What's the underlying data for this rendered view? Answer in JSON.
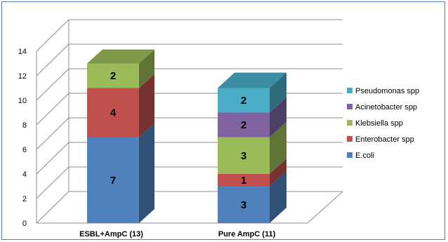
{
  "chart_data": {
    "type": "bar",
    "stacked": true,
    "three_d": true,
    "categories": [
      "ESBL+AmpC (13)",
      "Pure AmpC (11)"
    ],
    "series": [
      {
        "name": "E.coli",
        "values": [
          7,
          3
        ],
        "color": "#4f81bd"
      },
      {
        "name": "Enterobacter spp",
        "values": [
          4,
          1
        ],
        "color": "#c0504d"
      },
      {
        "name": "Klebsiella spp",
        "values": [
          2,
          3
        ],
        "color": "#9bbb59"
      },
      {
        "name": "Acinetobacter spp",
        "values": [
          0,
          2
        ],
        "color": "#8064a2"
      },
      {
        "name": "Pseudomonas spp",
        "values": [
          0,
          2
        ],
        "color": "#4bacc6"
      }
    ],
    "ylim": [
      0,
      14
    ],
    "yticks": [
      0,
      2,
      4,
      6,
      8,
      10,
      12,
      14
    ],
    "grid": true,
    "legend": "right",
    "frame_color": "#4f81bd"
  }
}
